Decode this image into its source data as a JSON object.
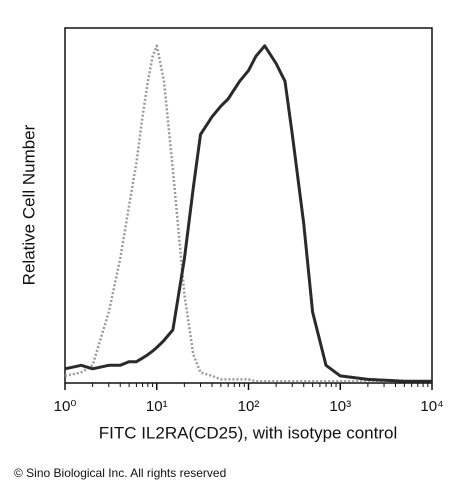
{
  "chart_data": {
    "type": "line",
    "x_label": "FITC IL2RA(CD25), with isotype control",
    "y_label": "Relative Cell Number",
    "footer": "© Sino Biological Inc. All rights reserved",
    "xscale": "log",
    "xlim": [
      1,
      10000
    ],
    "ylim": [
      0,
      100
    ],
    "xticks": [
      {
        "value": 1,
        "label": "10⁰"
      },
      {
        "value": 10,
        "label": "10¹"
      },
      {
        "value": 100,
        "label": "10²"
      },
      {
        "value": 1000,
        "label": "10³"
      },
      {
        "value": 10000,
        "label": "10⁴"
      }
    ],
    "x": [
      1,
      1.5,
      2,
      3,
      4,
      5,
      6,
      7,
      8,
      9,
      10,
      12,
      15,
      20,
      25,
      30,
      40,
      50,
      60,
      80,
      100,
      120,
      150,
      200,
      250,
      300,
      400,
      500,
      700,
      1000,
      2000,
      5000,
      10000
    ],
    "series": [
      {
        "color": "#9a9a9a",
        "values": [
          2,
          3,
          5,
          20,
          35,
          50,
          62,
          75,
          85,
          92,
          95,
          85,
          60,
          25,
          8,
          3,
          2,
          1,
          1,
          1,
          1,
          0.5,
          0.5,
          0.5,
          0.5,
          0.5,
          0.5,
          0.5,
          0.5,
          0.5,
          0.5,
          0.5,
          0.5
        ]
      },
      {
        "color": "#2a2a2a",
        "values": [
          4,
          5,
          4,
          5,
          5,
          6,
          6,
          7,
          8,
          9,
          10,
          12,
          15,
          35,
          55,
          70,
          75,
          78,
          80,
          85,
          88,
          92,
          95,
          90,
          85,
          70,
          45,
          20,
          5,
          2,
          1,
          0.5,
          0.5
        ]
      }
    ]
  }
}
